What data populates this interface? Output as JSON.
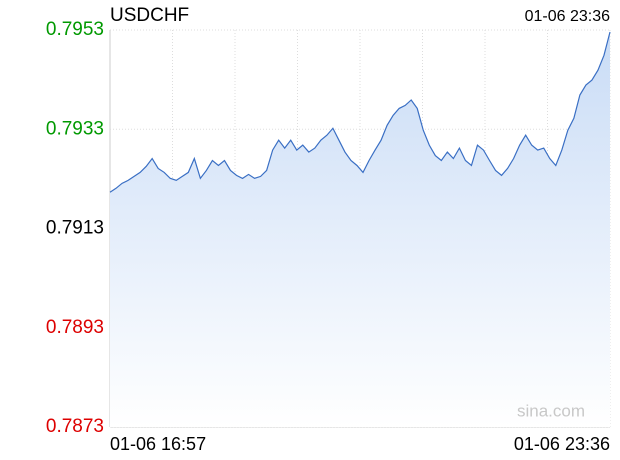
{
  "chart_data": {
    "type": "line",
    "title": "USDCHF",
    "updated": "01-06 23:36",
    "watermark": "sina.com",
    "categories": [
      "01-06 16:57",
      null,
      null,
      null,
      null,
      null,
      null,
      null,
      null,
      null,
      null,
      null,
      null,
      null,
      null,
      null,
      null,
      null,
      null,
      null,
      null,
      null,
      null,
      null,
      null,
      null,
      null,
      null,
      null,
      null,
      null,
      null,
      null,
      null,
      null,
      null,
      null,
      null,
      null,
      null,
      null,
      null,
      null,
      null,
      null,
      null,
      null,
      null,
      null,
      null,
      null,
      null,
      null,
      null,
      null,
      null,
      null,
      null,
      null,
      null,
      null,
      null,
      null,
      null,
      null,
      null,
      null,
      null,
      null,
      null,
      null,
      null,
      null,
      null,
      null,
      null,
      null,
      null,
      null,
      null,
      null,
      null,
      null,
      "01-06 23:36"
    ],
    "series": [
      {
        "name": "USDCHF",
        "color": "#3a6fc4",
        "values": [
          0.79203,
          0.79211,
          0.79221,
          0.79227,
          0.79235,
          0.79243,
          0.79255,
          0.79271,
          0.79251,
          0.79243,
          0.79231,
          0.79227,
          0.79235,
          0.79243,
          0.79271,
          0.79231,
          0.79247,
          0.79267,
          0.79257,
          0.79267,
          0.79247,
          0.79237,
          0.79231,
          0.79239,
          0.79231,
          0.79235,
          0.79247,
          0.79288,
          0.79308,
          0.79292,
          0.79308,
          0.79288,
          0.79298,
          0.79284,
          0.79292,
          0.79308,
          0.79318,
          0.79332,
          0.79308,
          0.79284,
          0.79267,
          0.79257,
          0.79243,
          0.79267,
          0.79288,
          0.79308,
          0.79338,
          0.79358,
          0.79372,
          0.79378,
          0.79389,
          0.79372,
          0.79328,
          0.79298,
          0.79277,
          0.79267,
          0.79284,
          0.79271,
          0.79292,
          0.79267,
          0.79257,
          0.79298,
          0.79288,
          0.79267,
          0.79247,
          0.79237,
          0.79251,
          0.79271,
          0.79298,
          0.79318,
          0.79298,
          0.79288,
          0.79292,
          0.79271,
          0.79257,
          0.79288,
          0.79328,
          0.79352,
          0.79399,
          0.79419,
          0.79429,
          0.79449,
          0.79479,
          0.79526
        ]
      }
    ],
    "ylim": [
      0.7873,
      0.7953
    ],
    "yticks": [
      0.7873,
      0.7893,
      0.7913,
      0.7933,
      0.7953
    ],
    "reference_line": 0.7913,
    "up_color": "#009900",
    "down_color": "#dd0000",
    "flat_color": "#000000",
    "grid": true
  }
}
